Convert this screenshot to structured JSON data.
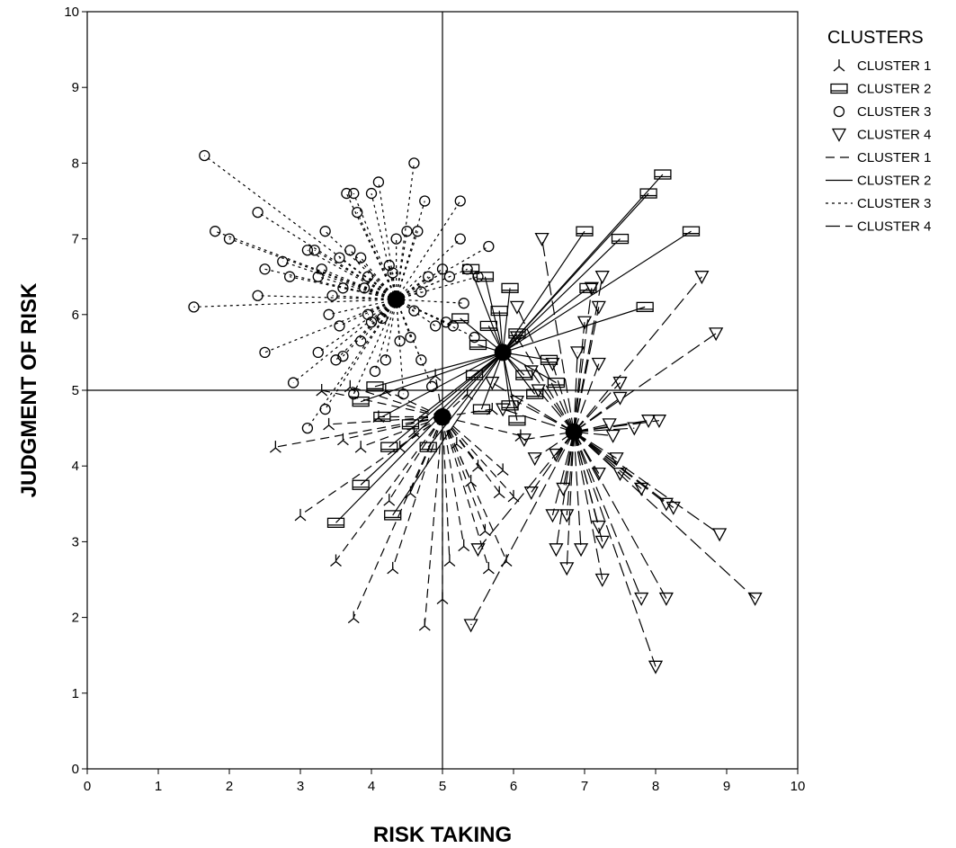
{
  "chart_data": {
    "type": "scatter",
    "title": "",
    "xlabel": "RISK TAKING",
    "ylabel": "JUDGMENT OF RISK",
    "xlim": [
      0,
      10
    ],
    "ylim": [
      0,
      10
    ],
    "xticks": [
      "0",
      "1",
      "2",
      "3",
      "4",
      "5",
      "6",
      "7",
      "8",
      "9",
      "10"
    ],
    "yticks": [
      "0",
      "1",
      "2",
      "3",
      "4",
      "5",
      "6",
      "7",
      "8",
      "9",
      "10"
    ],
    "reference_lines": {
      "x": 5,
      "y": 5
    },
    "grid": false,
    "legend": {
      "title": "CLUSTERS",
      "placement": "right",
      "entries": [
        {
          "label": "CLUSTER 1",
          "kind": "marker",
          "marker": "tri-branch"
        },
        {
          "label": "CLUSTER 2",
          "kind": "marker",
          "marker": "rectangle"
        },
        {
          "label": "CLUSTER 3",
          "kind": "marker",
          "marker": "circle"
        },
        {
          "label": "CLUSTER 4",
          "kind": "marker",
          "marker": "triangle-down"
        },
        {
          "label": "CLUSTER 1",
          "kind": "line",
          "dash": "medium-dash"
        },
        {
          "label": "CLUSTER 2",
          "kind": "line",
          "dash": "solid"
        },
        {
          "label": "CLUSTER 3",
          "kind": "line",
          "dash": "dotted"
        },
        {
          "label": "CLUSTER 4",
          "kind": "line",
          "dash": "long-dash"
        }
      ]
    },
    "series": [
      {
        "name": "CLUSTER 1",
        "marker": "tri-branch",
        "line": "medium-dash",
        "centroid": [
          5.0,
          4.65
        ],
        "points": [
          [
            2.65,
            4.25
          ],
          [
            3.0,
            3.35
          ],
          [
            3.5,
            2.75
          ],
          [
            3.75,
            2.0
          ],
          [
            3.85,
            4.25
          ],
          [
            4.25,
            3.55
          ],
          [
            4.3,
            2.65
          ],
          [
            4.55,
            3.65
          ],
          [
            4.75,
            1.9
          ],
          [
            5.0,
            2.25
          ],
          [
            5.1,
            2.75
          ],
          [
            5.3,
            2.95
          ],
          [
            5.4,
            3.8
          ],
          [
            5.6,
            3.15
          ],
          [
            5.65,
            2.65
          ],
          [
            5.8,
            3.65
          ],
          [
            5.9,
            2.75
          ],
          [
            6.0,
            3.6
          ],
          [
            3.4,
            4.55
          ],
          [
            3.6,
            4.35
          ],
          [
            3.3,
            5.0
          ],
          [
            3.7,
            5.05
          ],
          [
            4.1,
            4.65
          ],
          [
            4.4,
            4.25
          ],
          [
            4.6,
            4.45
          ],
          [
            5.5,
            4.0
          ],
          [
            5.85,
            3.95
          ],
          [
            6.1,
            4.4
          ],
          [
            5.2,
            4.3
          ],
          [
            4.2,
            5.0
          ],
          [
            5.7,
            4.75
          ],
          [
            4.9,
            5.2
          ],
          [
            5.35,
            4.95
          ]
        ]
      },
      {
        "name": "CLUSTER 2",
        "marker": "rectangle",
        "line": "solid",
        "centroid": [
          5.85,
          5.5
        ],
        "points": [
          [
            3.5,
            3.25
          ],
          [
            3.85,
            3.75
          ],
          [
            4.3,
            3.35
          ],
          [
            4.25,
            4.25
          ],
          [
            4.8,
            4.25
          ],
          [
            4.15,
            4.65
          ],
          [
            4.55,
            4.55
          ],
          [
            8.1,
            7.85
          ],
          [
            7.9,
            7.6
          ],
          [
            8.5,
            7.1
          ],
          [
            7.0,
            7.1
          ],
          [
            7.5,
            7.0
          ],
          [
            7.85,
            6.1
          ],
          [
            7.05,
            6.35
          ],
          [
            5.95,
            6.35
          ],
          [
            5.4,
            6.6
          ],
          [
            5.6,
            6.5
          ],
          [
            5.25,
            5.95
          ],
          [
            5.65,
            5.85
          ],
          [
            6.05,
            5.75
          ],
          [
            6.5,
            5.4
          ],
          [
            6.15,
            5.2
          ],
          [
            6.3,
            4.95
          ],
          [
            5.45,
            5.2
          ],
          [
            5.95,
            4.8
          ],
          [
            6.05,
            4.6
          ],
          [
            5.55,
            4.75
          ],
          [
            3.85,
            4.85
          ],
          [
            4.05,
            5.05
          ],
          [
            5.5,
            5.6
          ],
          [
            5.8,
            6.05
          ],
          [
            6.6,
            5.1
          ]
        ]
      },
      {
        "name": "CLUSTER 3",
        "marker": "circle",
        "line": "dotted",
        "centroid": [
          4.35,
          6.2
        ],
        "points": [
          [
            1.65,
            8.1
          ],
          [
            1.8,
            7.1
          ],
          [
            1.5,
            6.1
          ],
          [
            2.0,
            7.0
          ],
          [
            2.4,
            7.35
          ],
          [
            2.5,
            6.6
          ],
          [
            2.75,
            6.7
          ],
          [
            2.4,
            6.25
          ],
          [
            2.5,
            5.5
          ],
          [
            2.85,
            6.5
          ],
          [
            2.9,
            5.1
          ],
          [
            3.1,
            6.85
          ],
          [
            3.2,
            6.85
          ],
          [
            3.25,
            5.5
          ],
          [
            3.3,
            6.6
          ],
          [
            3.35,
            7.1
          ],
          [
            3.45,
            6.25
          ],
          [
            3.5,
            5.4
          ],
          [
            3.6,
            6.35
          ],
          [
            3.65,
            7.6
          ],
          [
            3.7,
            6.85
          ],
          [
            3.75,
            7.6
          ],
          [
            3.8,
            7.35
          ],
          [
            3.85,
            6.75
          ],
          [
            3.95,
            6.0
          ],
          [
            4.0,
            7.6
          ],
          [
            4.1,
            7.75
          ],
          [
            4.2,
            5.4
          ],
          [
            4.35,
            7.0
          ],
          [
            4.5,
            7.1
          ],
          [
            4.6,
            8.0
          ],
          [
            4.65,
            7.1
          ],
          [
            4.75,
            7.5
          ],
          [
            4.8,
            6.5
          ],
          [
            4.9,
            5.85
          ],
          [
            5.0,
            6.6
          ],
          [
            5.1,
            6.5
          ],
          [
            5.25,
            7.5
          ],
          [
            5.35,
            6.6
          ],
          [
            5.5,
            6.5
          ],
          [
            5.65,
            6.9
          ],
          [
            5.25,
            7.0
          ],
          [
            3.1,
            4.5
          ],
          [
            3.35,
            4.75
          ],
          [
            3.75,
            4.95
          ],
          [
            4.05,
            5.25
          ],
          [
            4.45,
            4.95
          ],
          [
            4.7,
            5.4
          ],
          [
            3.55,
            5.85
          ],
          [
            3.85,
            5.65
          ],
          [
            4.15,
            5.95
          ],
          [
            4.55,
            5.7
          ],
          [
            4.85,
            5.05
          ],
          [
            5.05,
            5.9
          ],
          [
            5.3,
            6.15
          ],
          [
            3.25,
            6.5
          ],
          [
            3.55,
            6.75
          ],
          [
            3.95,
            6.5
          ],
          [
            4.25,
            6.65
          ],
          [
            4.7,
            6.3
          ],
          [
            5.45,
            5.7
          ],
          [
            3.6,
            5.45
          ],
          [
            4.4,
            5.65
          ],
          [
            4.0,
            5.9
          ],
          [
            3.9,
            6.35
          ],
          [
            4.6,
            6.05
          ],
          [
            5.15,
            5.85
          ],
          [
            3.4,
            6.0
          ],
          [
            4.3,
            6.55
          ]
        ]
      },
      {
        "name": "CLUSTER 4",
        "marker": "triangle-down",
        "line": "long-dash",
        "centroid": [
          6.85,
          4.45
        ],
        "points": [
          [
            6.4,
            7.0
          ],
          [
            7.25,
            6.5
          ],
          [
            7.1,
            6.35
          ],
          [
            7.2,
            6.1
          ],
          [
            8.65,
            6.5
          ],
          [
            8.85,
            5.75
          ],
          [
            7.0,
            5.9
          ],
          [
            6.55,
            5.35
          ],
          [
            6.25,
            5.25
          ],
          [
            7.2,
            5.35
          ],
          [
            6.9,
            5.5
          ],
          [
            6.05,
            6.1
          ],
          [
            7.5,
            4.9
          ],
          [
            7.5,
            5.1
          ],
          [
            7.9,
            4.6
          ],
          [
            8.05,
            4.6
          ],
          [
            7.7,
            4.5
          ],
          [
            7.4,
            4.4
          ],
          [
            7.45,
            4.1
          ],
          [
            6.3,
            4.1
          ],
          [
            6.15,
            4.35
          ],
          [
            6.25,
            3.65
          ],
          [
            7.2,
            3.9
          ],
          [
            7.5,
            3.9
          ],
          [
            8.15,
            3.5
          ],
          [
            8.25,
            3.45
          ],
          [
            8.9,
            3.1
          ],
          [
            9.4,
            2.25
          ],
          [
            8.15,
            2.25
          ],
          [
            7.8,
            2.25
          ],
          [
            7.25,
            2.5
          ],
          [
            7.25,
            3.0
          ],
          [
            7.2,
            3.2
          ],
          [
            6.95,
            2.9
          ],
          [
            6.75,
            3.35
          ],
          [
            6.6,
            2.9
          ],
          [
            6.75,
            2.65
          ],
          [
            6.55,
            3.35
          ],
          [
            6.7,
            3.7
          ],
          [
            5.5,
            2.9
          ],
          [
            5.4,
            1.9
          ],
          [
            8.0,
            1.35
          ],
          [
            7.8,
            3.7
          ],
          [
            6.05,
            4.85
          ],
          [
            5.85,
            4.75
          ],
          [
            5.7,
            5.1
          ],
          [
            6.35,
            5.0
          ],
          [
            6.6,
            4.15
          ],
          [
            6.05,
            5.7
          ],
          [
            7.35,
            4.55
          ]
        ]
      }
    ]
  }
}
